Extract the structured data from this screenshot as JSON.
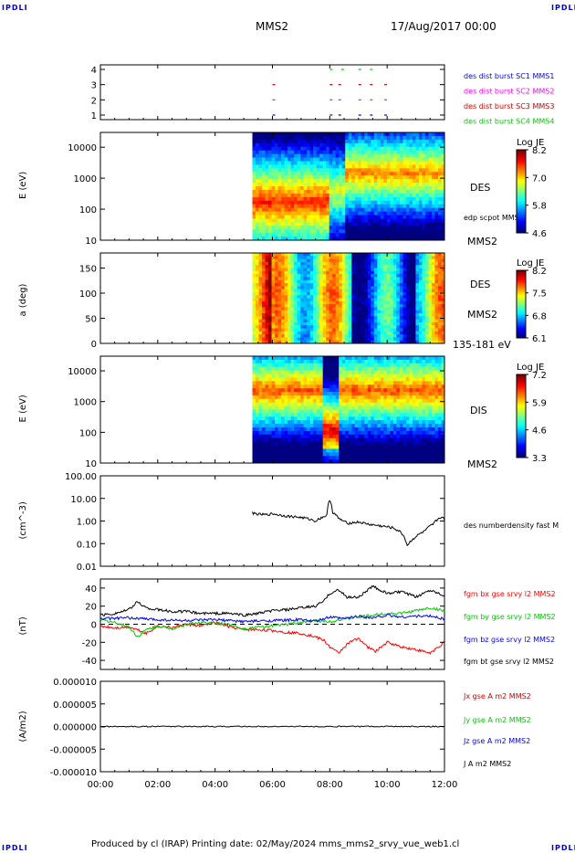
{
  "header": {
    "corner_tl": "IPDLI",
    "corner_tr": "IPDLI",
    "corner_bl": "IPDLI",
    "corner_br": "IPDLI",
    "spacecraft": "MMS2",
    "date": "17/Aug/2017 00:00"
  },
  "footer": {
    "text": "Produced by cl (IRAP)   Printing date: 02/May/2024   mms_mms2_srvy_vue_web1.cl"
  },
  "time_axis": {
    "ticks": [
      "00:00",
      "02:00",
      "04:00",
      "06:00",
      "08:00",
      "10:00",
      "12:00"
    ]
  },
  "chart_data": [
    {
      "type": "scatter",
      "id": "burst-availability",
      "y_ticks": [
        "4",
        "3",
        "2",
        "1"
      ],
      "legend": [
        {
          "label": "des dist burst SC1 MMS1",
          "color": "#0000ff"
        },
        {
          "label": "des dist burst SC2 MMS2",
          "color": "#ff00ff"
        },
        {
          "label": "des dist burst SC3 MMS3",
          "color": "#cc0000"
        },
        {
          "label": "des dist burst SC4 MMS4",
          "color": "#00cc00"
        }
      ],
      "series": [
        {
          "name": "des dist burst SC1 MMS1",
          "y": 1,
          "x_hours": [
            6.0,
            8.0,
            8.3,
            9.0,
            9.4,
            9.9
          ]
        },
        {
          "name": "des dist burst SC2 MMS2",
          "y": 2,
          "x_hours": [
            6.0,
            8.0,
            8.3,
            9.0,
            9.4,
            9.9
          ]
        },
        {
          "name": "des dist burst SC3 MMS3",
          "y": 3,
          "x_hours": [
            6.0,
            8.0,
            8.3,
            9.0,
            9.4,
            9.9
          ]
        },
        {
          "name": "des dist burst SC4 MMS4",
          "y": 4,
          "x_hours": [
            8.0,
            8.4,
            9.0,
            9.4
          ]
        }
      ]
    },
    {
      "type": "heatmap",
      "id": "des-energy-spectrogram",
      "ylabel": "E (eV)",
      "y_ticks": [
        "10000",
        "1000",
        "100",
        "10"
      ],
      "ylog": true,
      "ylim": [
        10,
        30000
      ],
      "data_start_hour": 5.3,
      "labels": [
        "DES",
        "edp scpot MMS2",
        "MMS2"
      ],
      "colorbar": {
        "title": "Log JE",
        "ticks": [
          "8.2",
          "7.0",
          "5.8",
          "4.6"
        ]
      }
    },
    {
      "type": "heatmap",
      "id": "des-pitch-angle",
      "ylabel": "a (deg)",
      "y_ticks": [
        "150",
        "100",
        "50",
        "0"
      ],
      "ylim": [
        0,
        180
      ],
      "data_start_hour": 5.3,
      "labels": [
        "DES",
        "MMS2",
        "135-181 eV"
      ],
      "colorbar": {
        "title": "Log JE",
        "ticks": [
          "8.2",
          "7.5",
          "6.8",
          "6.1"
        ]
      }
    },
    {
      "type": "heatmap",
      "id": "dis-energy-spectrogram",
      "ylabel": "E (eV)",
      "y_ticks": [
        "10000",
        "1000",
        "100",
        "10"
      ],
      "ylog": true,
      "ylim": [
        10,
        30000
      ],
      "data_start_hour": 5.3,
      "labels": [
        "DIS",
        "MMS2"
      ],
      "colorbar": {
        "title": "Log JE",
        "ticks": [
          "7.2",
          "5.9",
          "4.6",
          "3.3"
        ]
      }
    },
    {
      "type": "line",
      "id": "number-density",
      "ylabel": "(cm^-3)",
      "ylog": true,
      "ylim": [
        0.01,
        100
      ],
      "y_ticks": [
        "100.00",
        "10.00",
        "1.00",
        "0.10",
        "0.01"
      ],
      "series": [
        {
          "name": "des numberdensity fast M",
          "color": "#000000",
          "x": [
            5.3,
            5.5,
            5.8,
            6.0,
            6.3,
            6.6,
            6.9,
            7.2,
            7.5,
            7.7,
            7.9,
            8.0,
            8.1,
            8.3,
            8.6,
            9.0,
            9.4,
            9.8,
            10.2,
            10.5,
            10.7,
            11.0,
            11.3,
            11.6,
            11.9,
            12.0
          ],
          "y": [
            2.3,
            2.0,
            1.9,
            2.1,
            1.8,
            1.6,
            1.5,
            1.3,
            1.0,
            1.4,
            1.8,
            9.0,
            2.5,
            1.3,
            0.8,
            0.9,
            0.7,
            0.6,
            0.5,
            0.3,
            0.08,
            0.2,
            0.35,
            0.7,
            1.6,
            1.1
          ]
        }
      ]
    },
    {
      "type": "line",
      "id": "magnetic-field",
      "ylabel": "(nT)",
      "ylim": [
        -50,
        50
      ],
      "y_ticks": [
        "40",
        "20",
        "0",
        "-20",
        "-40"
      ],
      "series": [
        {
          "name": "fgm bx gse srvy l2 MMS2",
          "color": "#ff0000",
          "x": [
            0,
            0.5,
            1.0,
            1.3,
            1.6,
            2.0,
            2.5,
            3.0,
            3.5,
            4.0,
            4.5,
            5.0,
            5.5,
            6.0,
            6.5,
            7.0,
            7.5,
            7.8,
            8.0,
            8.3,
            8.6,
            9.0,
            9.3,
            9.6,
            10.0,
            10.5,
            11.0,
            11.5,
            12.0
          ],
          "y": [
            -2,
            -4,
            -3,
            -6,
            -10,
            -2,
            -4,
            0,
            -2,
            2,
            -3,
            -6,
            -6,
            -7,
            -9,
            -10,
            -14,
            -18,
            -25,
            -32,
            -22,
            -15,
            -25,
            -30,
            -20,
            -25,
            -28,
            -32,
            -20
          ]
        },
        {
          "name": "fgm by gse srvy l2 MMS2",
          "color": "#00cc00",
          "x": [
            0,
            0.5,
            1.0,
            1.3,
            1.6,
            2.0,
            2.5,
            3.0,
            3.5,
            4.0,
            4.5,
            5.0,
            5.5,
            6.0,
            6.5,
            7.0,
            7.5,
            8.0,
            8.5,
            9.0,
            9.5,
            10.0,
            10.5,
            11.0,
            11.5,
            12.0
          ],
          "y": [
            5,
            2,
            -3,
            -14,
            -6,
            -2,
            -5,
            0,
            2,
            1,
            0,
            -5,
            -3,
            -2,
            0,
            2,
            4,
            3,
            6,
            8,
            10,
            12,
            12,
            15,
            18,
            15
          ]
        },
        {
          "name": "fgm bz gse srvy l2 MMS2",
          "color": "#0000ff",
          "x": [
            0,
            1,
            2,
            3,
            4,
            5,
            6,
            7,
            7.5,
            8.0,
            8.5,
            9.0,
            9.5,
            10.0,
            10.5,
            11.0,
            11.5,
            12.0
          ],
          "y": [
            6,
            7,
            5,
            4,
            5,
            3,
            4,
            5,
            3,
            8,
            6,
            9,
            7,
            10,
            8,
            9,
            9,
            6
          ]
        },
        {
          "name": "fgm bt gse srvy l2 MMS2",
          "color": "#000000",
          "x": [
            0,
            0.5,
            1.0,
            1.3,
            1.6,
            2.0,
            2.5,
            3.0,
            3.5,
            4.0,
            4.5,
            5.0,
            5.5,
            6.0,
            6.5,
            7.0,
            7.5,
            7.8,
            8.0,
            8.3,
            8.6,
            9.0,
            9.5,
            10.0,
            10.5,
            11.0,
            11.5,
            12.0
          ],
          "y": [
            10,
            12,
            16,
            25,
            18,
            16,
            14,
            14,
            12,
            12,
            12,
            10,
            12,
            15,
            16,
            18,
            20,
            26,
            34,
            38,
            30,
            30,
            42,
            34,
            36,
            30,
            38,
            32
          ]
        }
      ]
    },
    {
      "type": "line",
      "id": "current-density",
      "ylabel": "(A/m2)",
      "ylim": [
        -0.0001,
        0.0001
      ],
      "y_ticks": [
        "0.000010",
        "0.000005",
        "0.000000",
        "-0.000005",
        "-0.000010"
      ],
      "series": [
        {
          "name": "Jx gse A m2 MMS2",
          "color": "#cc0000",
          "x": [
            0,
            12
          ],
          "y": [
            0,
            0
          ]
        },
        {
          "name": "Jy gse A m2 MMS2",
          "color": "#00cc00",
          "x": [
            0,
            12
          ],
          "y": [
            0,
            0
          ]
        },
        {
          "name": "Jz gse A m2 MMS2",
          "color": "#0000ff",
          "x": [
            0,
            12
          ],
          "y": [
            0,
            0
          ]
        },
        {
          "name": "J A m2 MMS2",
          "color": "#000000",
          "x": [
            0,
            12
          ],
          "y": [
            0,
            0
          ]
        }
      ]
    }
  ]
}
